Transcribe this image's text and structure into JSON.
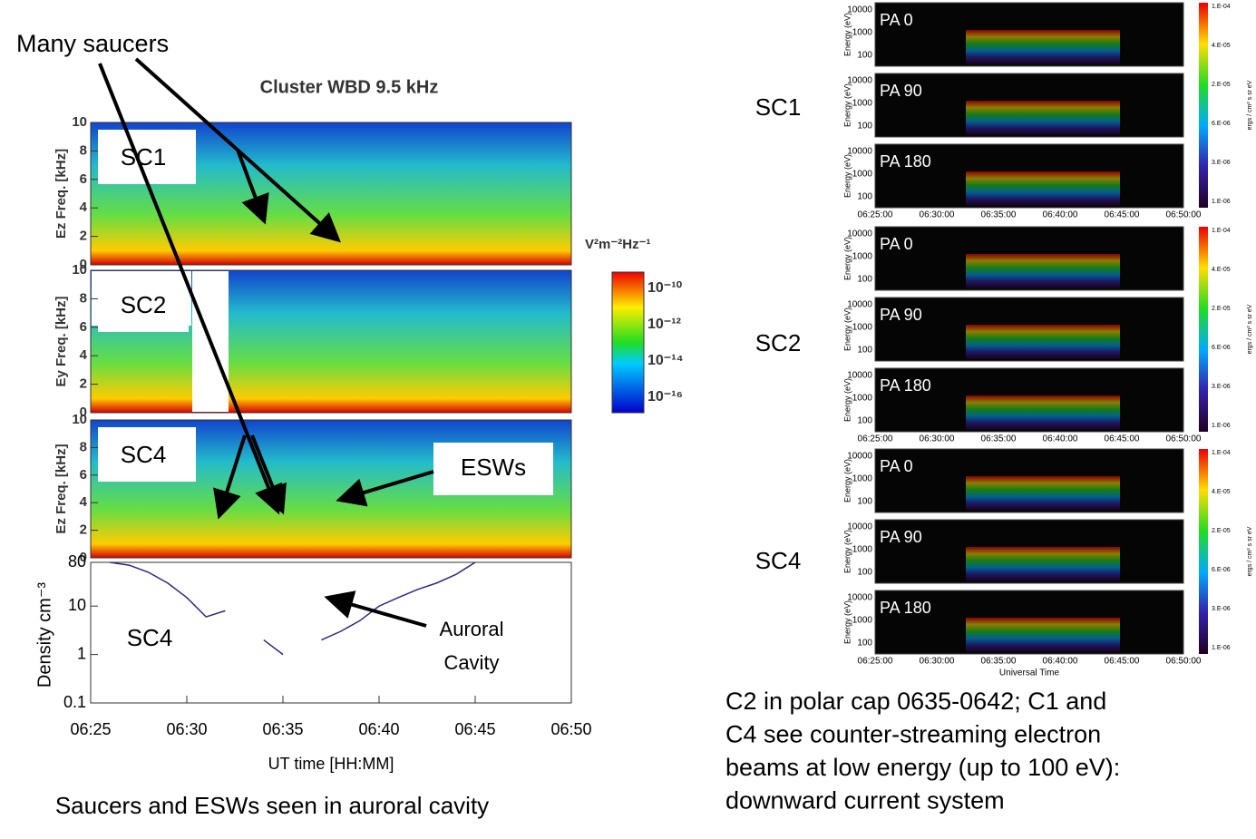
{
  "left": {
    "annotation": "Many saucers",
    "title": "Cluster WBD 9.5 kHz",
    "panels": [
      {
        "label": "SC1",
        "ylabel": "Ez Freq. [kHz]"
      },
      {
        "label": "SC2",
        "ylabel": "Ey Freq. [kHz]"
      },
      {
        "label": "SC4",
        "ylabel": "Ez Freq. [kHz]"
      }
    ],
    "freq_ticks": [
      0,
      2,
      4,
      6,
      8,
      10
    ],
    "colorbar": {
      "unit": "V²m⁻²Hz⁻¹",
      "ticks": [
        "10⁻¹⁰",
        "10⁻¹²",
        "10⁻¹⁴",
        "10⁻¹⁶"
      ]
    },
    "esws": "ESWs",
    "cavity": [
      "Auroral",
      "Cavity"
    ],
    "chart_data": {
      "type": "line",
      "label": "SC4",
      "ylabel": "Density cm⁻³",
      "log_y": true,
      "color": "#2b2b7c",
      "ylim": [
        0.1,
        80
      ],
      "yticks": [
        0.1,
        1,
        10,
        80
      ],
      "xlim": [
        "06:25",
        "06:50"
      ],
      "xticks": [
        "06:25",
        "06:30",
        "06:35",
        "06:40",
        "06:45",
        "06:50"
      ],
      "xlabel": "UT time [HH:MM]",
      "x": [
        "06:26",
        "06:27",
        "06:28",
        "06:29",
        "06:30",
        "06:31",
        "06:32",
        "06:33",
        "06:34",
        "06:35",
        "06:36",
        "06:37",
        "06:38",
        "06:39",
        "06:40",
        "06:41",
        "06:42",
        "06:43",
        "06:44",
        "06:45"
      ],
      "values": [
        80,
        70,
        50,
        30,
        15,
        6,
        8,
        null,
        2,
        1,
        null,
        2,
        3,
        5,
        10,
        15,
        22,
        30,
        45,
        80
      ]
    },
    "caption": "Saucers and ESWs seen in auroral cavity"
  },
  "right": {
    "groups": [
      {
        "label": "SC1"
      },
      {
        "label": "SC2"
      },
      {
        "label": "SC4"
      }
    ],
    "panel_labels": [
      "PA 0",
      "PA 90",
      "PA 180"
    ],
    "ylabel": "Energy (eV)",
    "yticks": [
      "10000",
      "1000",
      "100"
    ],
    "xticks": [
      "06:25:00",
      "06:30:00",
      "06:35:00",
      "06:40:00",
      "06:45:00",
      "06:50:00"
    ],
    "xlabel": "Universal Time",
    "colorbar_ticks": [
      "1.E-04",
      "4.E-05",
      "2.E-05",
      "6.E-06",
      "3.E-06",
      "1.E-06"
    ],
    "colorbar_label": "ergs / cm² s sr eV",
    "caption": [
      "C2 in polar cap 0635-0642; C1 and",
      "C4 see counter-streaming electron",
      "beams at low energy (up to 100 eV):",
      "downward current system"
    ]
  }
}
